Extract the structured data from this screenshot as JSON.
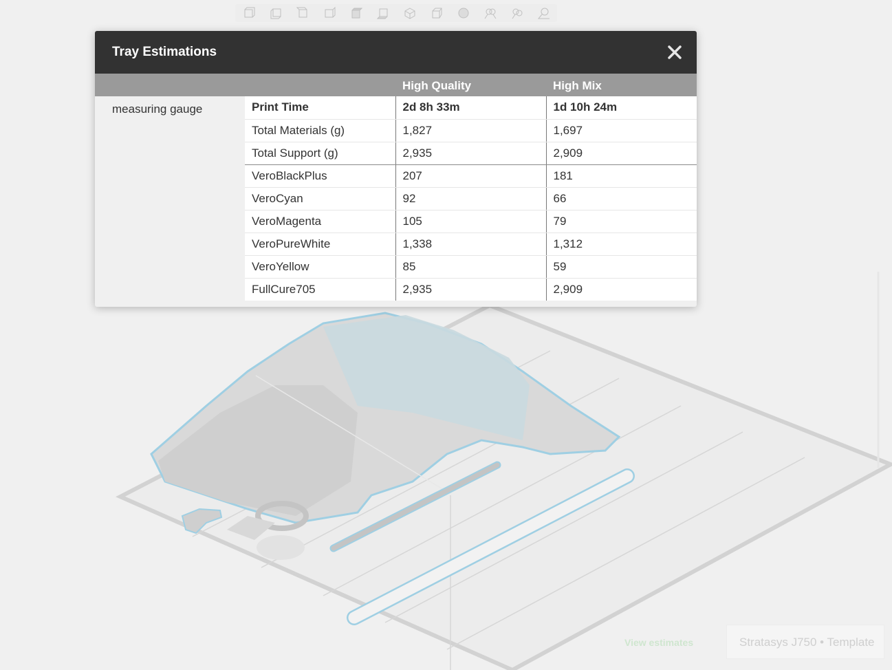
{
  "dialog": {
    "title": "Tray Estimations",
    "close_icon": "close-icon",
    "columns": [
      "High Quality",
      "High Mix"
    ],
    "model_name": "measuring gauge",
    "rows": [
      {
        "label": "Print Time",
        "hq": "2d 8h 33m",
        "hm": "1d 10h 24m"
      },
      {
        "label": "Total Materials (g)",
        "hq": "1,827",
        "hm": "1,697"
      },
      {
        "label": "Total Support (g)",
        "hq": "2,935",
        "hm": "2,909"
      },
      {
        "label": "VeroBlackPlus",
        "hq": "207",
        "hm": "181"
      },
      {
        "label": "VeroCyan",
        "hq": "92",
        "hm": "66"
      },
      {
        "label": "VeroMagenta",
        "hq": "105",
        "hm": "79"
      },
      {
        "label": "VeroPureWhite",
        "hq": "1,338",
        "hm": "1,312"
      },
      {
        "label": "VeroYellow",
        "hq": "85",
        "hm": "59"
      },
      {
        "label": "FullCure705",
        "hq": "2,935",
        "hm": "2,909"
      }
    ]
  },
  "footer": {
    "view_estimates": "View estimates",
    "printer": "Stratasys J750 • Template"
  },
  "toolbar": {
    "icons": [
      "view-front-icon",
      "view-back-icon",
      "view-left-icon",
      "view-right-icon",
      "view-top-icon",
      "view-bottom-icon",
      "view-iso-icon",
      "view-iso-alt-icon",
      "sphere-icon",
      "group-select-icon",
      "multi-select-icon",
      "zoom-select-icon"
    ]
  },
  "colors": {
    "header_bg": "#323232",
    "column_header_bg": "#9a9a9a",
    "page_bg": "#f0f0f0",
    "model_outline": "#9fcfe3"
  }
}
